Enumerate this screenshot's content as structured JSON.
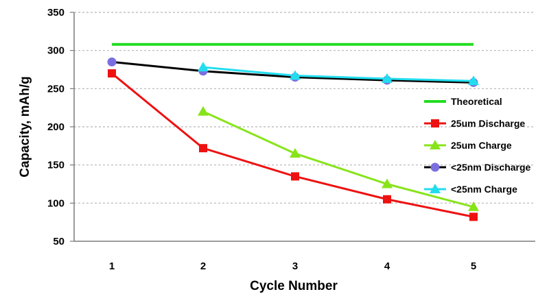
{
  "chart_data": {
    "type": "line",
    "title": "",
    "xlabel": "Cycle Number",
    "ylabel": "Capacity, mAh/g",
    "categories": [
      "1",
      "2",
      "3",
      "4",
      "5"
    ],
    "ylim": [
      50,
      350
    ],
    "yticks": [
      50,
      100,
      150,
      200,
      250,
      300,
      350
    ],
    "grid": "horizontal dashed",
    "legend_position": "right",
    "series": [
      {
        "name": "Theoretical",
        "color": "#22dd22",
        "marker": "none",
        "values": [
          308,
          308,
          308,
          308,
          308
        ]
      },
      {
        "name": "25um Discharge",
        "color": "#ee1111",
        "marker": "square",
        "values": [
          270,
          172,
          135,
          105,
          82
        ]
      },
      {
        "name": "25um Charge",
        "color": "#88e41a",
        "marker": "triangle",
        "values": [
          null,
          220,
          165,
          125,
          95
        ]
      },
      {
        "name": "<25nm Discharge",
        "color": "#000000",
        "marker": "circle",
        "marker_color": "#7b6fe0",
        "values": [
          285,
          273,
          265,
          261,
          258
        ]
      },
      {
        "name": "<25nm Charge",
        "color": "#22ddee",
        "marker": "triangle",
        "values": [
          null,
          278,
          267,
          263,
          260
        ]
      }
    ]
  }
}
